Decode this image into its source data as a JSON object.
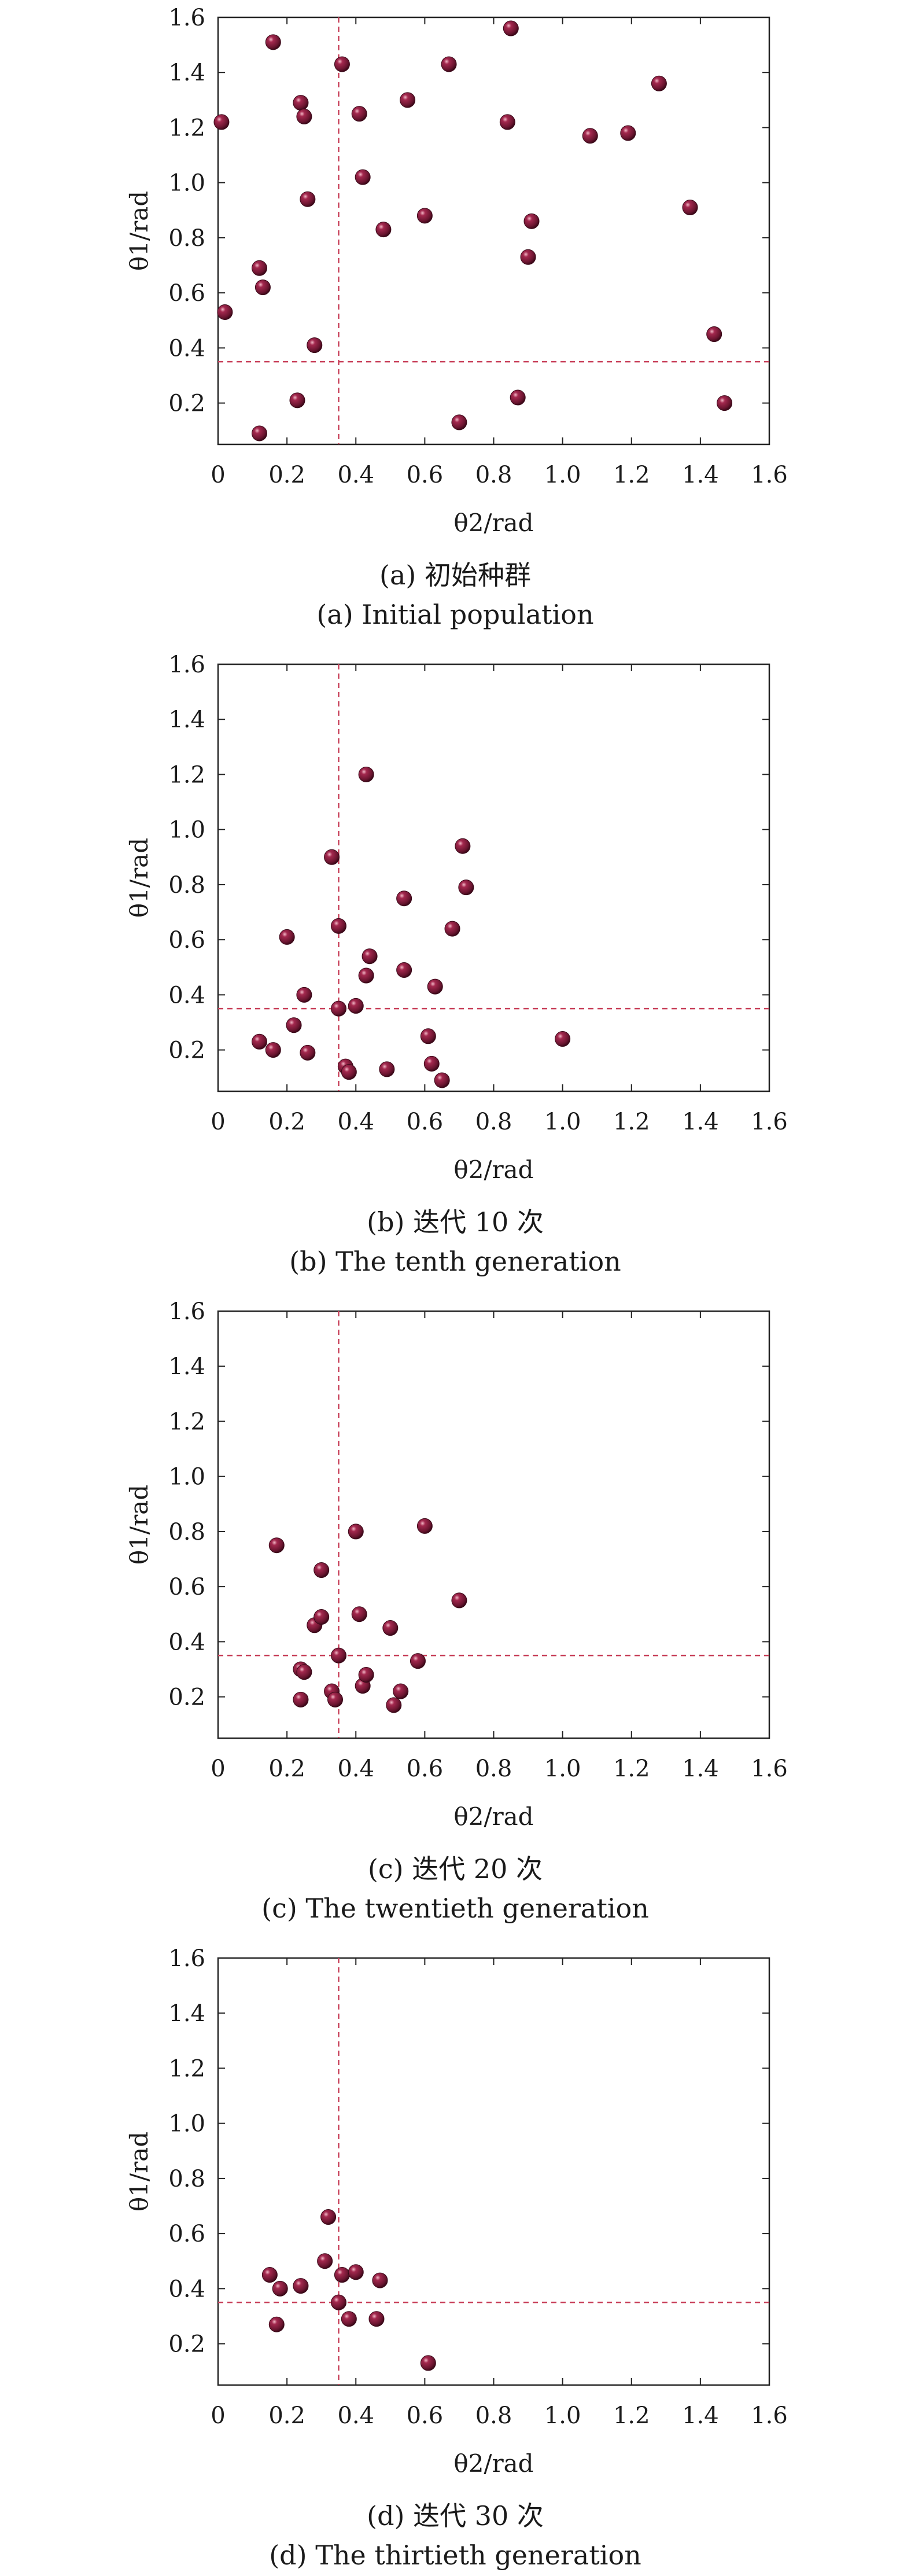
{
  "figure": {
    "panels": [
      {
        "caption_cn": "(a) 初始种群",
        "caption_en": "(a) Initial population"
      },
      {
        "caption_cn": "(b) 迭代 10 次",
        "caption_en": "(b) The tenth generation"
      },
      {
        "caption_cn": "(c) 迭代 20 次",
        "caption_en": "(c) The twentieth generation"
      },
      {
        "caption_cn": "(d) 迭代 30 次",
        "caption_en": "(d) The thirtieth generation"
      }
    ]
  },
  "colors": {
    "point": "#7a1f3d",
    "point_highlight": "#e8a0b4",
    "reference_line": "#c8405a",
    "axis": "#222222"
  },
  "chart_data": [
    {
      "type": "scatter",
      "title": "(a) 初始种群 / (a) Initial population",
      "xlabel": "θ2/rad",
      "ylabel": "θ1/rad",
      "xlim": [
        0,
        1.6
      ],
      "ylim": [
        0.05,
        1.6
      ],
      "xticks": [
        "0",
        "0.2",
        "0.4",
        "0.6",
        "0.8",
        "1.0",
        "1.2",
        "1.4",
        "1.6"
      ],
      "yticks": [
        "0.2",
        "0.4",
        "0.6",
        "0.8",
        "1.0",
        "1.2",
        "1.4",
        "1.6"
      ],
      "reference": {
        "x": 0.35,
        "y": 0.35
      },
      "grid": false,
      "points": [
        [
          0.01,
          1.22
        ],
        [
          0.02,
          0.53
        ],
        [
          0.12,
          0.09
        ],
        [
          0.12,
          0.69
        ],
        [
          0.13,
          0.62
        ],
        [
          0.16,
          1.51
        ],
        [
          0.23,
          0.21
        ],
        [
          0.24,
          1.29
        ],
        [
          0.25,
          1.24
        ],
        [
          0.26,
          0.94
        ],
        [
          0.28,
          0.41
        ],
        [
          0.36,
          1.43
        ],
        [
          0.41,
          1.25
        ],
        [
          0.42,
          1.02
        ],
        [
          0.48,
          0.83
        ],
        [
          0.55,
          1.3
        ],
        [
          0.6,
          0.88
        ],
        [
          0.67,
          1.43
        ],
        [
          0.7,
          0.13
        ],
        [
          0.84,
          1.22
        ],
        [
          0.85,
          1.56
        ],
        [
          0.87,
          0.22
        ],
        [
          0.9,
          0.73
        ],
        [
          0.91,
          0.86
        ],
        [
          1.08,
          1.17
        ],
        [
          1.19,
          1.18
        ],
        [
          1.28,
          1.36
        ],
        [
          1.37,
          0.91
        ],
        [
          1.44,
          0.45
        ],
        [
          1.47,
          0.2
        ]
      ]
    },
    {
      "type": "scatter",
      "title": "(b) 迭代 10 次 / (b) The tenth generation",
      "xlabel": "θ2/rad",
      "ylabel": "θ1/rad",
      "xlim": [
        0,
        1.6
      ],
      "ylim": [
        0.05,
        1.6
      ],
      "xticks": [
        "0",
        "0.2",
        "0.4",
        "0.6",
        "0.8",
        "1.0",
        "1.2",
        "1.4",
        "1.6"
      ],
      "yticks": [
        "0.2",
        "0.4",
        "0.6",
        "0.8",
        "1.0",
        "1.2",
        "1.4",
        "1.6"
      ],
      "reference": {
        "x": 0.35,
        "y": 0.35
      },
      "grid": false,
      "points": [
        [
          0.12,
          0.23
        ],
        [
          0.16,
          0.2
        ],
        [
          0.2,
          0.61
        ],
        [
          0.22,
          0.29
        ],
        [
          0.25,
          0.4
        ],
        [
          0.26,
          0.19
        ],
        [
          0.33,
          0.9
        ],
        [
          0.35,
          0.65
        ],
        [
          0.35,
          0.35
        ],
        [
          0.37,
          0.14
        ],
        [
          0.38,
          0.12
        ],
        [
          0.4,
          0.36
        ],
        [
          0.43,
          1.2
        ],
        [
          0.43,
          0.47
        ],
        [
          0.44,
          0.54
        ],
        [
          0.49,
          0.13
        ],
        [
          0.54,
          0.75
        ],
        [
          0.54,
          0.49
        ],
        [
          0.61,
          0.25
        ],
        [
          0.62,
          0.15
        ],
        [
          0.63,
          0.43
        ],
        [
          0.65,
          0.09
        ],
        [
          0.68,
          0.64
        ],
        [
          0.71,
          0.94
        ],
        [
          0.72,
          0.79
        ],
        [
          1.0,
          0.24
        ]
      ]
    },
    {
      "type": "scatter",
      "title": "(c) 迭代 20 次 / (c) The twentieth generation",
      "xlabel": "θ2/rad",
      "ylabel": "θ1/rad",
      "xlim": [
        0,
        1.6
      ],
      "ylim": [
        0.05,
        1.6
      ],
      "xticks": [
        "0",
        "0.2",
        "0.4",
        "0.6",
        "0.8",
        "1.0",
        "1.2",
        "1.4",
        "1.6"
      ],
      "yticks": [
        "0.2",
        "0.4",
        "0.6",
        "0.8",
        "1.0",
        "1.2",
        "1.4",
        "1.6"
      ],
      "reference": {
        "x": 0.35,
        "y": 0.35
      },
      "grid": false,
      "points": [
        [
          0.17,
          0.75
        ],
        [
          0.24,
          0.19
        ],
        [
          0.24,
          0.3
        ],
        [
          0.25,
          0.29
        ],
        [
          0.28,
          0.46
        ],
        [
          0.3,
          0.66
        ],
        [
          0.3,
          0.49
        ],
        [
          0.33,
          0.22
        ],
        [
          0.34,
          0.19
        ],
        [
          0.35,
          0.35
        ],
        [
          0.4,
          0.8
        ],
        [
          0.41,
          0.5
        ],
        [
          0.42,
          0.24
        ],
        [
          0.43,
          0.28
        ],
        [
          0.5,
          0.45
        ],
        [
          0.51,
          0.17
        ],
        [
          0.53,
          0.22
        ],
        [
          0.58,
          0.33
        ],
        [
          0.6,
          0.82
        ],
        [
          0.7,
          0.55
        ]
      ]
    },
    {
      "type": "scatter",
      "title": "(d) 迭代 30 次 / (d) The thirtieth generation",
      "xlabel": "θ2/rad",
      "ylabel": "θ1/rad",
      "xlim": [
        0,
        1.6
      ],
      "ylim": [
        0.05,
        1.6
      ],
      "xticks": [
        "0",
        "0.2",
        "0.4",
        "0.6",
        "0.8",
        "1.0",
        "1.2",
        "1.4",
        "1.6"
      ],
      "yticks": [
        "0.2",
        "0.4",
        "0.6",
        "0.8",
        "1.0",
        "1.2",
        "1.4",
        "1.6"
      ],
      "reference": {
        "x": 0.35,
        "y": 0.35
      },
      "grid": false,
      "points": [
        [
          0.15,
          0.45
        ],
        [
          0.17,
          0.27
        ],
        [
          0.18,
          0.4
        ],
        [
          0.24,
          0.41
        ],
        [
          0.31,
          0.5
        ],
        [
          0.32,
          0.66
        ],
        [
          0.35,
          0.35
        ],
        [
          0.36,
          0.45
        ],
        [
          0.38,
          0.29
        ],
        [
          0.4,
          0.46
        ],
        [
          0.46,
          0.29
        ],
        [
          0.47,
          0.43
        ],
        [
          0.61,
          0.13
        ]
      ]
    }
  ]
}
